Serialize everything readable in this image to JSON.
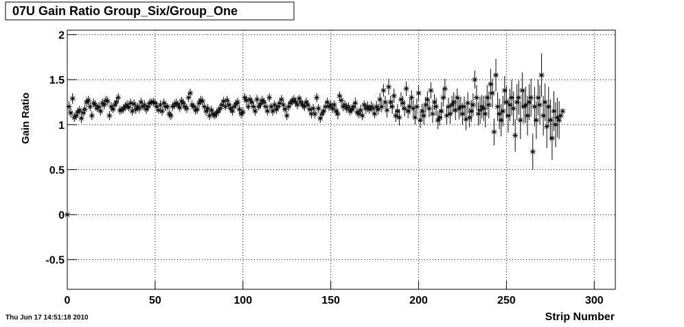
{
  "chart_data": {
    "type": "scatter",
    "title": "07U Gain Ratio Group_Six/Group_One",
    "x_label": "Strip Number",
    "y_label": "Gain Ratio",
    "timestamp": "Thu Jun 17 14:51:18 2010",
    "xlim": [
      0,
      312
    ],
    "ylim": [
      -0.83,
      2.05
    ],
    "xticks": [
      0,
      50,
      100,
      150,
      200,
      250,
      300
    ],
    "yticks": [
      -0.5,
      0,
      0.5,
      1,
      1.5,
      2
    ],
    "grid": true,
    "color": "#000000",
    "x": [
      0,
      1,
      2,
      3,
      4,
      5,
      6,
      7,
      8,
      9,
      10,
      11,
      12,
      13,
      14,
      15,
      16,
      17,
      18,
      19,
      20,
      21,
      22,
      23,
      24,
      25,
      26,
      27,
      28,
      29,
      30,
      31,
      32,
      33,
      34,
      35,
      36,
      37,
      38,
      39,
      40,
      41,
      42,
      43,
      44,
      45,
      46,
      47,
      48,
      49,
      50,
      51,
      52,
      53,
      54,
      55,
      56,
      57,
      58,
      59,
      60,
      61,
      62,
      63,
      64,
      65,
      66,
      67,
      68,
      69,
      70,
      71,
      72,
      73,
      74,
      75,
      76,
      77,
      78,
      79,
      80,
      81,
      82,
      83,
      84,
      85,
      86,
      87,
      88,
      89,
      90,
      91,
      92,
      93,
      94,
      95,
      96,
      97,
      98,
      99,
      100,
      101,
      102,
      103,
      104,
      105,
      106,
      107,
      108,
      109,
      110,
      111,
      112,
      113,
      114,
      115,
      116,
      117,
      118,
      119,
      120,
      121,
      122,
      123,
      124,
      125,
      126,
      127,
      128,
      129,
      130,
      131,
      132,
      133,
      134,
      135,
      136,
      137,
      138,
      139,
      140,
      141,
      142,
      143,
      144,
      145,
      146,
      147,
      148,
      149,
      150,
      151,
      152,
      153,
      154,
      155,
      156,
      157,
      158,
      159,
      160,
      161,
      162,
      163,
      164,
      165,
      166,
      167,
      168,
      169,
      170,
      171,
      172,
      173,
      174,
      175,
      176,
      177,
      178,
      179,
      180,
      181,
      182,
      183,
      184,
      185,
      186,
      187,
      188,
      189,
      190,
      191,
      192,
      193,
      194,
      195,
      196,
      197,
      198,
      199,
      200,
      201,
      202,
      203,
      204,
      205,
      206,
      207,
      208,
      209,
      210,
      211,
      212,
      213,
      214,
      215,
      216,
      217,
      218,
      219,
      220,
      221,
      222,
      223,
      224,
      225,
      226,
      227,
      228,
      229,
      230,
      231,
      232,
      233,
      234,
      235,
      236,
      237,
      238,
      239,
      240,
      241,
      242,
      243,
      244,
      245,
      246,
      247,
      248,
      249,
      250,
      251,
      252,
      253,
      254,
      255,
      256,
      257,
      258,
      259,
      260,
      261,
      262,
      263,
      264,
      265,
      266,
      267,
      268,
      269,
      270,
      271,
      272,
      273,
      274,
      275,
      276,
      277,
      278,
      279,
      280,
      281,
      282
    ],
    "values": [
      0,
      1.2,
      1.13,
      1.29,
      1.08,
      1.1,
      1.14,
      1.16,
      1.07,
      1.13,
      1.17,
      1.25,
      1.27,
      1.2,
      1.1,
      1.24,
      1.22,
      1.18,
      1.2,
      1.15,
      1.24,
      1.22,
      1.27,
      1.26,
      1.1,
      1.2,
      1.17,
      1.22,
      1.25,
      1.3,
      1.16,
      1.16,
      1.18,
      1.2,
      1.22,
      1.19,
      1.24,
      1.15,
      1.23,
      1.17,
      1.2,
      1.18,
      1.25,
      1.2,
      1.22,
      1.17,
      1.2,
      1.24,
      1.25,
      1.25,
      1.24,
      1.2,
      1.16,
      1.22,
      1.15,
      1.24,
      1.2,
      1.2,
      1.12,
      1.1,
      1.2,
      1.22,
      1.24,
      1.22,
      1.19,
      1.26,
      1.24,
      1.2,
      1.18,
      1.3,
      1.35,
      1.22,
      1.2,
      1.16,
      1.17,
      1.24,
      1.27,
      1.26,
      1.2,
      1.15,
      1.18,
      1.1,
      1.16,
      1.12,
      1.1,
      1.13,
      1.15,
      1.18,
      1.22,
      1.26,
      1.2,
      1.27,
      1.22,
      1.18,
      1.15,
      1.2,
      1.23,
      1.25,
      1.17,
      1.12,
      1.14,
      1.3,
      1.27,
      1.2,
      1.28,
      1.25,
      1.2,
      1.15,
      1.28,
      1.2,
      1.23,
      1.27,
      1.25,
      1.2,
      1.15,
      1.3,
      1.2,
      1.15,
      1.22,
      1.17,
      1.2,
      1.24,
      1.28,
      1.22,
      1.17,
      1.1,
      1.2,
      1.24,
      1.26,
      1.28,
      1.25,
      1.22,
      1.29,
      1.25,
      1.22,
      1.2,
      1.25,
      1.22,
      1.17,
      1.12,
      1.18,
      1.12,
      1.3,
      1.18,
      1.07,
      1.12,
      1.15,
      1.2,
      1.25,
      1.2,
      1.22,
      1.18,
      1.22,
      1.15,
      1.12,
      1.32,
      1.27,
      1.2,
      1.22,
      1.18,
      1.2,
      1.15,
      1.17,
      1.2,
      1.24,
      1.14,
      1.12,
      1.16,
      1.1,
      1.22,
      1.18,
      1.2,
      1.17,
      1.2,
      1.18,
      1.12,
      1.2,
      1.17,
      1.28,
      1.2,
      1.38,
      1.25,
      1.16,
      1.42,
      1.25,
      1.2,
      1.32,
      1.1,
      1.15,
      1.08,
      1.28,
      1.24,
      1.18,
      1.4,
      1.15,
      1.2,
      1.3,
      1.18,
      1.08,
      1.2,
      1.35,
      1.05,
      1.15,
      1.1,
      1.22,
      1.28,
      1.18,
      1.38,
      1.12,
      1.25,
      1.2,
      1.05,
      1.08,
      1.15,
      1.3,
      1.4,
      1.1,
      1.2,
      1.12,
      1.22,
      1.25,
      1.16,
      1.3,
      1.18,
      1.2,
      1.12,
      1.2,
      1.06,
      1.24,
      1.08,
      1.15,
      1.22,
      1.5,
      1.3,
      1.12,
      1.16,
      1.2,
      1.18,
      1.12,
      1.3,
      1.22,
      1.45,
      1.35,
      0.92,
      1.55,
      1.2,
      1.12,
      1.05,
      1.15,
      1.38,
      1.25,
      1.1,
      1.22,
      1.3,
      1.18,
      0.88,
      1.25,
      1.3,
      1.05,
      1.38,
      1.2,
      1.22,
      1.1,
      1.25,
      1.3,
      0.7,
      1.2,
      1.05,
      1.3,
      1.22,
      1.55,
      1.1,
      1.25,
      0.98,
      1.2,
      1.05,
      0.85,
      1.15,
      1.0,
      1.08,
      1.05,
      1.1,
      1.15
    ],
    "errors": [
      0,
      0.06,
      0.05,
      0.06,
      0.05,
      0.05,
      0.05,
      0.05,
      0.05,
      0.05,
      0.05,
      0.05,
      0.05,
      0.05,
      0.05,
      0.05,
      0.05,
      0.04,
      0.05,
      0.05,
      0.05,
      0.05,
      0.05,
      0.05,
      0.05,
      0.05,
      0.04,
      0.05,
      0.05,
      0.05,
      0.05,
      0.04,
      0.05,
      0.05,
      0.05,
      0.04,
      0.05,
      0.05,
      0.05,
      0.05,
      0.04,
      0.05,
      0.05,
      0.04,
      0.05,
      0.05,
      0.05,
      0.05,
      0.04,
      0.05,
      0.05,
      0.05,
      0.04,
      0.05,
      0.05,
      0.05,
      0.05,
      0.04,
      0.05,
      0.05,
      0.05,
      0.05,
      0.05,
      0.04,
      0.05,
      0.05,
      0.05,
      0.05,
      0.05,
      0.05,
      0.05,
      0.05,
      0.04,
      0.05,
      0.05,
      0.05,
      0.05,
      0.05,
      0.04,
      0.05,
      0.05,
      0.05,
      0.05,
      0.05,
      0.04,
      0.05,
      0.05,
      0.05,
      0.05,
      0.05,
      0.04,
      0.05,
      0.05,
      0.05,
      0.05,
      0.04,
      0.05,
      0.05,
      0.05,
      0.05,
      0.05,
      0.05,
      0.05,
      0.04,
      0.05,
      0.05,
      0.05,
      0.05,
      0.05,
      0.04,
      0.05,
      0.05,
      0.05,
      0.05,
      0.05,
      0.05,
      0.04,
      0.05,
      0.05,
      0.05,
      0.05,
      0.05,
      0.05,
      0.05,
      0.04,
      0.05,
      0.05,
      0.05,
      0.05,
      0.05,
      0.05,
      0.05,
      0.04,
      0.05,
      0.05,
      0.05,
      0.05,
      0.05,
      0.05,
      0.05,
      0.05,
      0.05,
      0.05,
      0.05,
      0.05,
      0.05,
      0.05,
      0.05,
      0.05,
      0.05,
      0.05,
      0.05,
      0.05,
      0.05,
      0.06,
      0.05,
      0.05,
      0.05,
      0.05,
      0.05,
      0.05,
      0.05,
      0.05,
      0.05,
      0.06,
      0.05,
      0.05,
      0.06,
      0.05,
      0.05,
      0.06,
      0.06,
      0.05,
      0.06,
      0.06,
      0.05,
      0.06,
      0.06,
      0.07,
      0.06,
      0.07,
      0.07,
      0.08,
      0.09,
      0.07,
      0.08,
      0.08,
      0.07,
      0.08,
      0.09,
      0.08,
      0.08,
      0.09,
      0.08,
      0.08,
      0.09,
      0.08,
      0.09,
      0.08,
      0.09,
      0.09,
      0.09,
      0.08,
      0.1,
      0.09,
      0.09,
      0.1,
      0.09,
      0.1,
      0.09,
      0.1,
      0.1,
      0.09,
      0.1,
      0.1,
      0.11,
      0.1,
      0.1,
      0.11,
      0.1,
      0.11,
      0.11,
      0.1,
      0.12,
      0.11,
      0.12,
      0.11,
      0.12,
      0.12,
      0.11,
      0.12,
      0.13,
      0.1,
      0.14,
      0.13,
      0.15,
      0.13,
      0.14,
      0.15,
      0.14,
      0.15,
      0.17,
      0.16,
      0.15,
      0.18,
      0.16,
      0.17,
      0.18,
      0.17,
      0.16,
      0.18,
      0.19,
      0.18,
      0.2,
      0.19,
      0.18,
      0.2,
      0.19,
      0.21,
      0.2,
      0.19,
      0.2,
      0.22,
      0.2,
      0.21,
      0.2,
      0.22,
      0.21,
      0.2,
      0.22,
      0.24,
      0.22,
      0.21,
      0.24,
      0.22,
      0.23,
      0.24,
      0.22,
      0.25,
      0.22,
      0.21,
      0.0,
      0.0
    ]
  }
}
